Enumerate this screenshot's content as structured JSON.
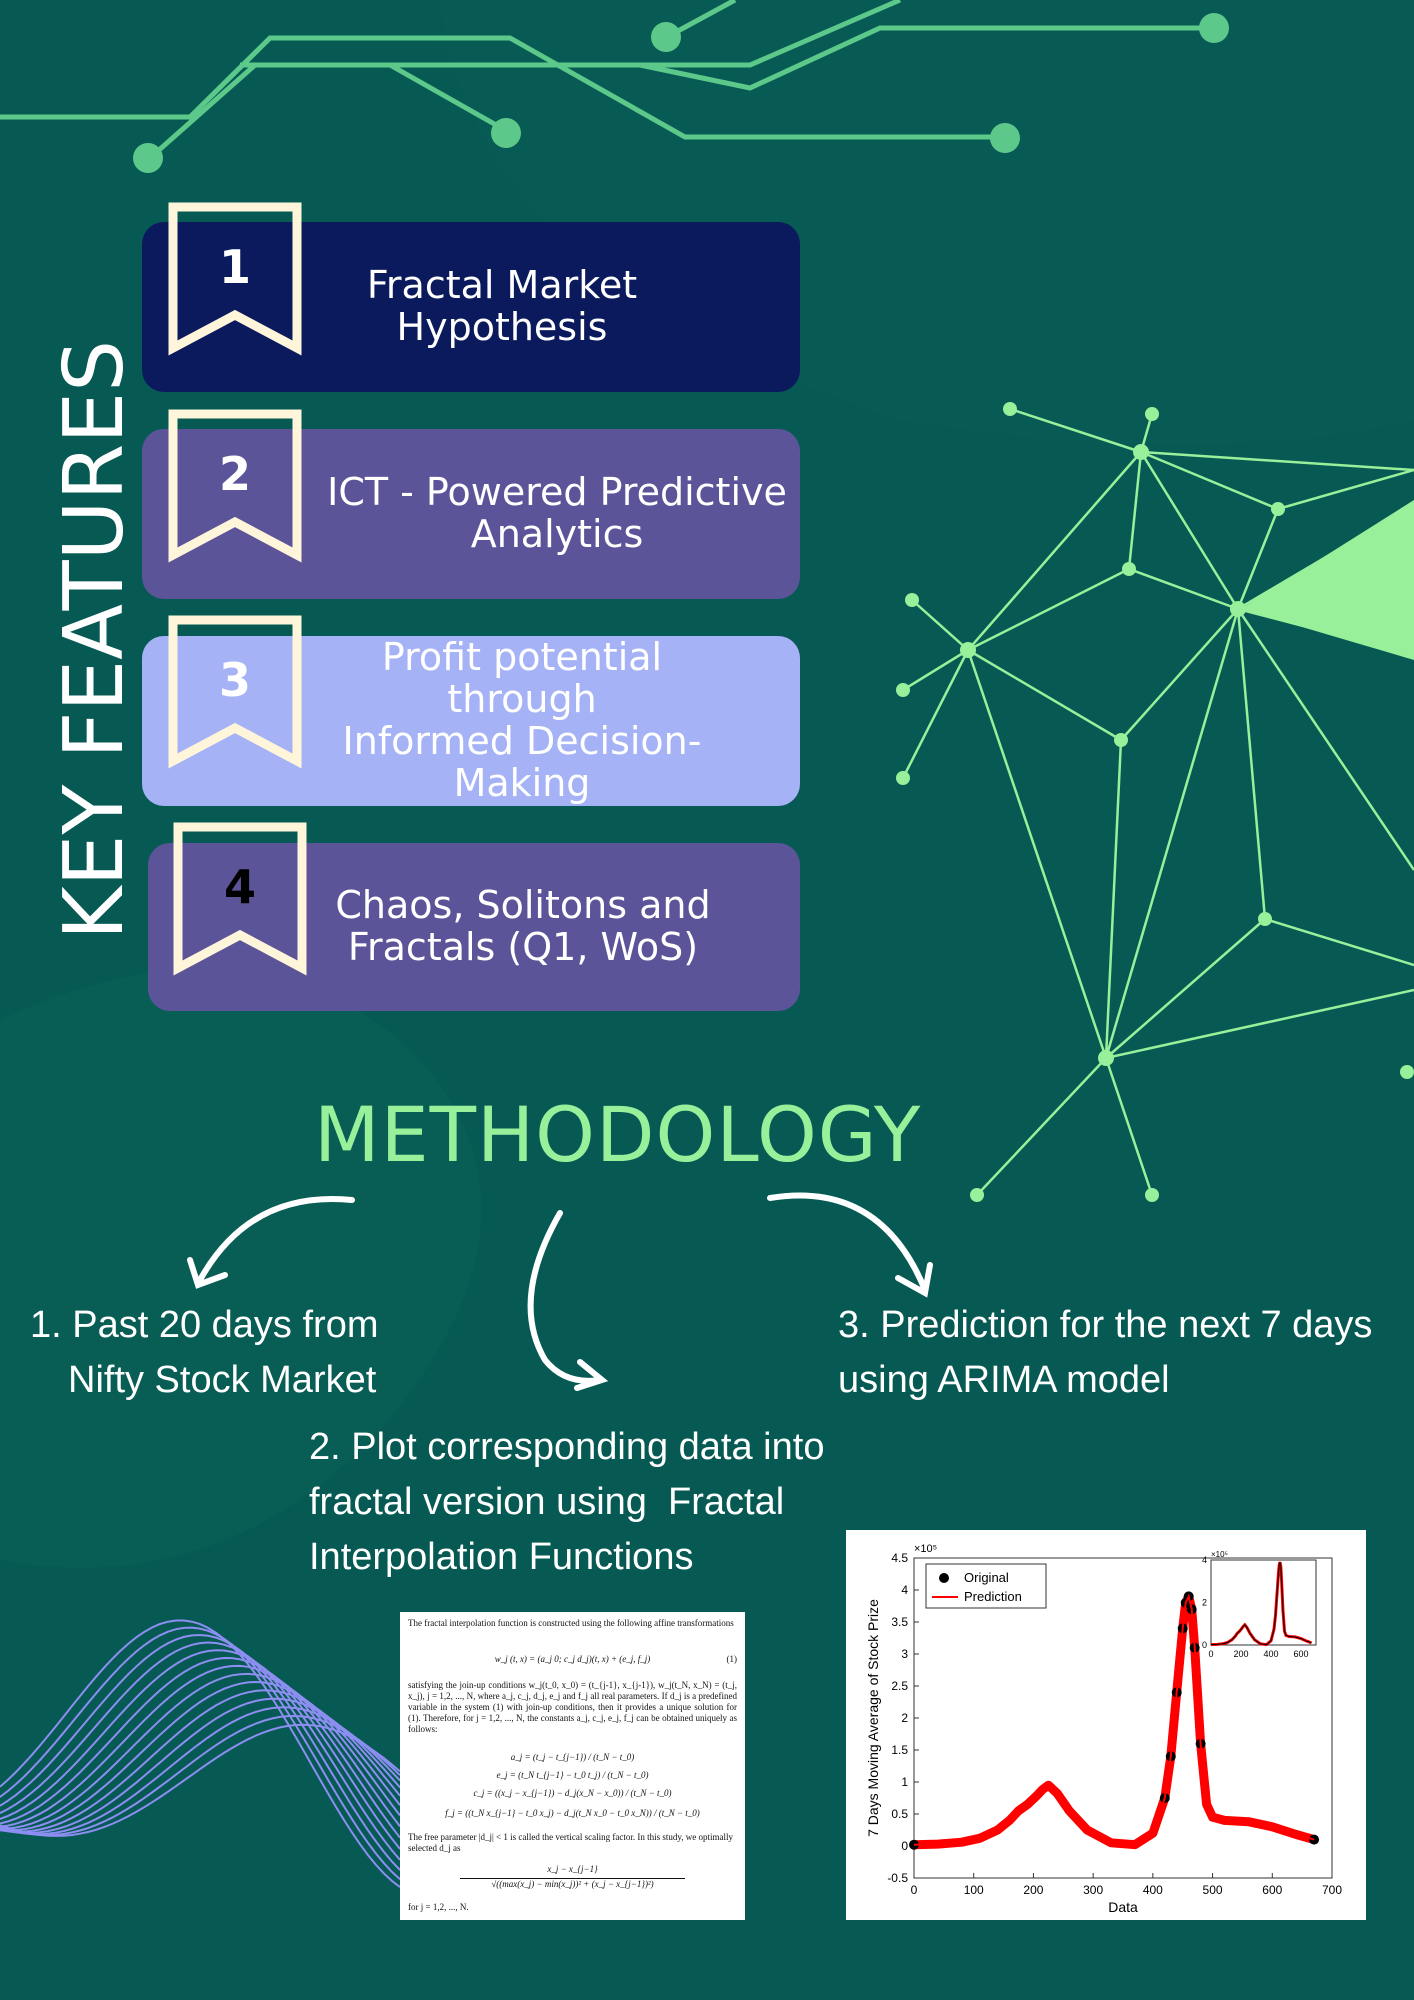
{
  "page": {
    "background": "#065a53",
    "accent_green": "#98f09a",
    "circuit_green": "#5cc98a"
  },
  "key_features": {
    "title": "KEY FEATURES",
    "items": [
      {
        "number": "1",
        "line1": "Fractal Market",
        "line2": "Hypothesis",
        "line3": "",
        "card_color": "#0a1a5c",
        "text_color": "#ffffff",
        "number_color": "#ffffff"
      },
      {
        "number": "2",
        "line1": "ICT - Powered Predictive",
        "line2": "Analytics",
        "line3": "",
        "card_color": "#5b5499",
        "text_color": "#ffffff",
        "number_color": "#ffffff"
      },
      {
        "number": "3",
        "line1": "Profit potential through",
        "line2": "Informed Decision-",
        "line3": "Making",
        "card_color": "#a5b2f5",
        "text_color": "#ffffff",
        "number_color": "#ffffff"
      },
      {
        "number": "4",
        "line1": "Chaos, Solitons and",
        "line2": "Fractals (Q1, WoS)",
        "line3": "",
        "card_color": "#5b5499",
        "text_color": "#ffffff",
        "number_color": "#000000"
      }
    ]
  },
  "methodology": {
    "title": "METHODOLOGY",
    "step1_l1": "1. Past 20 days from",
    "step1_l2": "Nifty Stock Market",
    "step2_l1": "2. Plot corresponding data into",
    "step2_l2": "fractal version using  Fractal",
    "step2_l3": "Interpolation Functions",
    "step3_l1": "3. Prediction for the next 7 days",
    "step3_l2": "using ARIMA model"
  },
  "paper": {
    "intro": "The fractal interpolation function is constructed using the following affine transformations",
    "eq1": "w_j (t, x) = (a_j 0; c_j d_j)(t, x) + (e_j, f_j)",
    "eq1_num": "(1)",
    "join": "satisfying the join-up conditions w_j(t_0, x_0) = (t_{j-1}, x_{j-1}), w_j(t_N, x_N) = (t_j, x_j), j = 1,2, ..., N, where a_j, c_j, d_j, e_j and f_j all real parameters. If d_j is a predefined variable in the system (1) with join-up conditions, then it provides a unique solution for (1). Therefore, for j = 1,2, ..., N, the constants a_j, c_j, e_j, f_j can be obtained uniquely as follows:",
    "a_eq": "a_j = (t_j − t_{j−1}) / (t_N − t_0)",
    "e_eq": "e_j = (t_N t_{j−1} − t_0 t_j) / (t_N − t_0)",
    "c_eq": "c_j = ((x_j − x_{j−1}) − d_j(x_N − x_0)) / (t_N − t_0)",
    "f_eq": "f_j = ((t_N x_{j−1} − t_0 x_j) − d_j(t_N x_0 − t_0 x_N)) / (t_N − t_0)",
    "free": "The free parameter |d_j| < 1 is called the vertical scaling factor. In this study, we optimally selected d_j as",
    "d_num": "x_j − x_{j−1}",
    "d_den": "√((max(x_j) − min(x_j))² + (x_j − x_{j−1})²)",
    "for": "for j = 1,2, ..., N."
  },
  "chart_data": {
    "type": "line",
    "xlabel": "Data",
    "ylabel": "7 Days Moving Average of Stock Prize",
    "exponent_label": "×10⁵",
    "xlim": [
      0,
      700
    ],
    "ylim": [
      -0.5,
      4.5
    ],
    "xticks": [
      "0",
      "100",
      "200",
      "300",
      "400",
      "500",
      "600",
      "700"
    ],
    "yticks": [
      "-0.5",
      "0",
      "0.5",
      "1",
      "1.5",
      "2",
      "2.5",
      "3",
      "3.5",
      "4",
      "4.5"
    ],
    "legend_position": "top-left",
    "series": [
      {
        "name": "Original",
        "style": "markers",
        "color": "#000000",
        "x": [
          0,
          40,
          80,
          110,
          140,
          160,
          175,
          190,
          205,
          215,
          225,
          240,
          260,
          290,
          330,
          370,
          400,
          420,
          430,
          440,
          450,
          455,
          460,
          465,
          470,
          480,
          490,
          500,
          520,
          560,
          600,
          640,
          670
        ],
        "y": [
          0.02,
          0.03,
          0.06,
          0.12,
          0.25,
          0.4,
          0.55,
          0.65,
          0.78,
          0.88,
          0.95,
          0.82,
          0.55,
          0.25,
          0.05,
          0.02,
          0.2,
          0.75,
          1.4,
          2.4,
          3.4,
          3.8,
          3.9,
          3.7,
          3.1,
          1.6,
          0.65,
          0.45,
          0.4,
          0.38,
          0.3,
          0.18,
          0.1
        ]
      },
      {
        "name": "Prediction",
        "style": "line",
        "color": "#ff0000",
        "x": [
          0,
          40,
          80,
          110,
          140,
          160,
          175,
          190,
          205,
          215,
          225,
          240,
          260,
          290,
          330,
          370,
          400,
          420,
          430,
          440,
          450,
          455,
          460,
          465,
          470,
          480,
          490,
          500,
          520,
          560,
          600,
          640,
          670
        ],
        "y": [
          0.02,
          0.03,
          0.06,
          0.12,
          0.25,
          0.4,
          0.55,
          0.65,
          0.78,
          0.88,
          0.95,
          0.82,
          0.55,
          0.25,
          0.05,
          0.02,
          0.2,
          0.75,
          1.4,
          2.4,
          3.4,
          3.8,
          3.9,
          3.7,
          3.1,
          1.6,
          0.65,
          0.45,
          0.4,
          0.38,
          0.3,
          0.18,
          0.1
        ]
      }
    ],
    "inset": {
      "exponent_label": "×10⁵",
      "xlim": [
        0,
        700
      ],
      "ylim": [
        0,
        4
      ],
      "xticks": [
        "0",
        "200",
        "400",
        "600"
      ],
      "yticks": [
        "0",
        "2",
        "4"
      ]
    }
  }
}
